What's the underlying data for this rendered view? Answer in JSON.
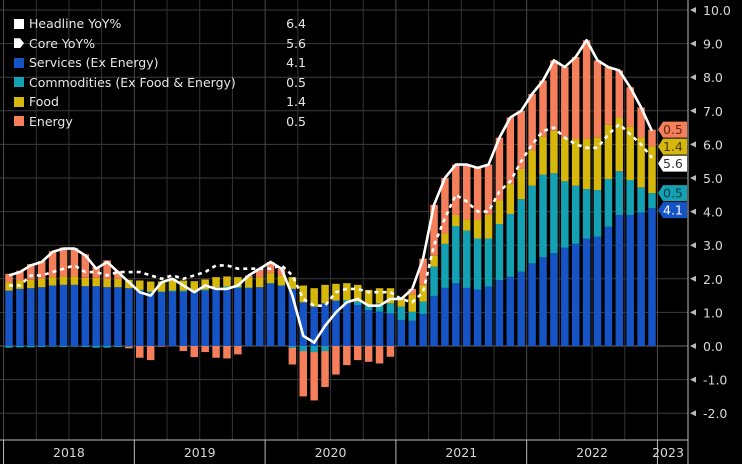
{
  "chart_data": {
    "type": "bar",
    "stacked": true,
    "title": "",
    "xlabel": "",
    "ylabel": "",
    "ylim": [
      -2.5,
      10.0
    ],
    "y_ticks": [
      "10.0",
      "9.0",
      "8.0",
      "7.0",
      "6.0",
      "5.0",
      "4.0",
      "3.0",
      "2.0",
      "1.0",
      "0.0",
      "-1.0",
      "-2.0"
    ],
    "y_axis_side": "right",
    "x_tick_labels": [
      "2018",
      "2019",
      "2020",
      "2021",
      "2022",
      "2023"
    ],
    "grid": true,
    "legend_placement": "top-left",
    "x_range": [
      "2018-01",
      "2022-12"
    ],
    "series": [
      {
        "name": "Services (Ex Energy)",
        "legend_value": "4.1",
        "color": "#1654c6",
        "values": [
          1.65,
          1.7,
          1.72,
          1.75,
          1.8,
          1.82,
          1.82,
          1.78,
          1.78,
          1.75,
          1.75,
          1.72,
          1.65,
          1.6,
          1.6,
          1.62,
          1.62,
          1.6,
          1.65,
          1.7,
          1.72,
          1.72,
          1.72,
          1.75,
          1.85,
          1.8,
          1.7,
          1.3,
          1.17,
          1.27,
          1.35,
          1.27,
          1.22,
          1.07,
          1.02,
          0.97,
          0.77,
          0.75,
          0.95,
          1.49,
          1.73,
          1.87,
          1.73,
          1.68,
          1.77,
          1.96,
          2.06,
          2.21,
          2.46,
          2.64,
          2.76,
          2.93,
          3.04,
          3.2,
          3.25,
          3.55,
          3.9,
          3.9,
          3.97,
          4.1
        ]
      },
      {
        "name": "Commodities (Ex Food & Energy)",
        "legend_value": "0.5",
        "color": "#14a1b3",
        "values": [
          -0.05,
          -0.04,
          -0.04,
          -0.03,
          -0.02,
          -0.03,
          -0.02,
          -0.03,
          -0.05,
          -0.05,
          -0.03,
          -0.02,
          0.02,
          0.02,
          0.02,
          0.03,
          0.03,
          0.03,
          0.03,
          0.05,
          0.05,
          0.03,
          0.02,
          0.0,
          0.02,
          0.0,
          -0.05,
          -0.15,
          -0.18,
          -0.15,
          0.0,
          0.1,
          0.1,
          0.15,
          0.25,
          0.3,
          0.4,
          0.27,
          0.37,
          0.87,
          1.31,
          1.7,
          1.7,
          1.52,
          1.43,
          1.67,
          1.87,
          2.16,
          2.31,
          2.46,
          2.38,
          1.97,
          1.73,
          1.47,
          1.39,
          1.42,
          1.3,
          1.04,
          0.75,
          0.45
        ]
      },
      {
        "name": "Food",
        "legend_value": "1.4",
        "color": "#d6b80d",
        "values": [
          0.25,
          0.25,
          0.25,
          0.25,
          0.25,
          0.25,
          0.25,
          0.25,
          0.25,
          0.25,
          0.25,
          0.25,
          0.28,
          0.3,
          0.3,
          0.3,
          0.3,
          0.3,
          0.3,
          0.3,
          0.3,
          0.3,
          0.3,
          0.3,
          0.3,
          0.3,
          0.35,
          0.5,
          0.55,
          0.55,
          0.5,
          0.5,
          0.5,
          0.45,
          0.45,
          0.45,
          0.26,
          0.51,
          0.5,
          0.34,
          0.31,
          0.33,
          0.34,
          0.55,
          0.7,
          0.7,
          0.89,
          0.9,
          1.05,
          1.14,
          1.27,
          1.31,
          1.39,
          1.49,
          1.57,
          1.61,
          1.6,
          1.59,
          1.49,
          1.39
        ]
      },
      {
        "name": "Energy",
        "legend_value": "0.5",
        "color": "#f57f5b",
        "values": [
          0.25,
          0.29,
          0.47,
          0.53,
          0.77,
          0.86,
          0.85,
          0.7,
          0.32,
          0.55,
          0.23,
          -0.05,
          -0.35,
          -0.42,
          -0.02,
          0.05,
          -0.15,
          -0.33,
          -0.18,
          -0.35,
          -0.37,
          -0.25,
          0.06,
          0.25,
          0.33,
          0.2,
          -0.5,
          -1.35,
          -1.44,
          -1.07,
          -0.85,
          -0.57,
          -0.42,
          -0.47,
          -0.52,
          -0.32,
          0.0,
          0.17,
          0.78,
          1.5,
          1.65,
          1.5,
          1.63,
          1.55,
          1.5,
          1.87,
          1.98,
          1.73,
          1.68,
          1.66,
          2.09,
          2.09,
          2.44,
          2.94,
          2.29,
          1.72,
          1.4,
          1.17,
          0.89,
          0.5
        ]
      }
    ],
    "lines": [
      {
        "name": "Headline YoY%",
        "legend_value": "6.4",
        "color": "#ffffff",
        "style": "solid",
        "values": [
          2.1,
          2.2,
          2.4,
          2.5,
          2.8,
          2.9,
          2.9,
          2.7,
          2.3,
          2.5,
          2.2,
          1.9,
          1.6,
          1.5,
          1.9,
          2.0,
          1.8,
          1.6,
          1.8,
          1.7,
          1.7,
          1.8,
          2.1,
          2.3,
          2.5,
          2.3,
          1.5,
          0.3,
          0.1,
          0.6,
          1.0,
          1.3,
          1.4,
          1.2,
          1.2,
          1.4,
          1.4,
          1.7,
          2.6,
          4.2,
          5.0,
          5.4,
          5.4,
          5.3,
          5.4,
          6.2,
          6.8,
          7.0,
          7.5,
          7.9,
          8.5,
          8.3,
          8.6,
          9.1,
          8.5,
          8.3,
          8.2,
          7.7,
          7.1,
          6.4
        ]
      },
      {
        "name": "Core YoY%",
        "legend_value": "5.6",
        "color": "#ffffff",
        "style": "dotted",
        "values": [
          1.8,
          1.8,
          2.1,
          2.1,
          2.2,
          2.3,
          2.4,
          2.2,
          2.2,
          2.1,
          2.2,
          2.2,
          2.2,
          2.1,
          2.0,
          2.1,
          2.0,
          2.1,
          2.2,
          2.4,
          2.4,
          2.3,
          2.3,
          2.3,
          2.3,
          2.4,
          2.1,
          1.4,
          1.2,
          1.2,
          1.6,
          1.7,
          1.7,
          1.6,
          1.6,
          1.6,
          1.4,
          1.3,
          1.6,
          3.0,
          3.8,
          4.5,
          4.3,
          4.0,
          4.0,
          4.6,
          4.9,
          5.5,
          6.0,
          6.4,
          6.5,
          6.2,
          6.0,
          5.9,
          5.9,
          6.3,
          6.6,
          6.3,
          6.0,
          5.6
        ]
      }
    ]
  }
}
